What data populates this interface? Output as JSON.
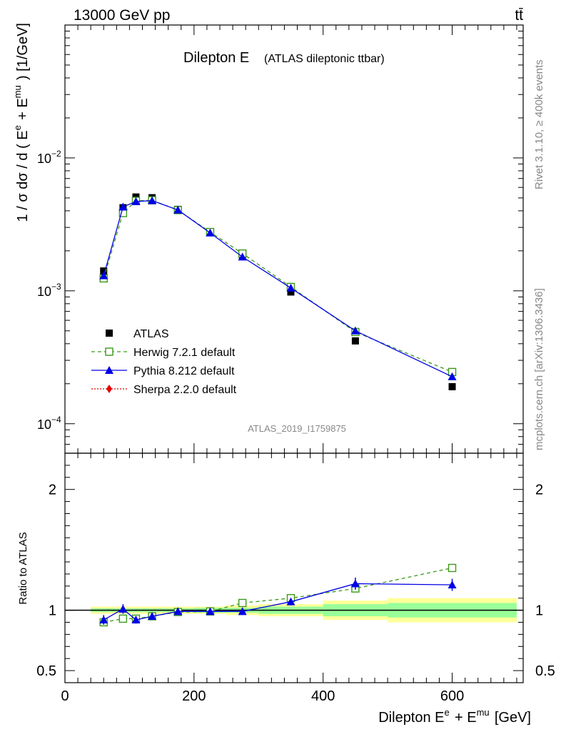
{
  "header": {
    "left": "13000 GeV pp",
    "right": "tt̄"
  },
  "title": {
    "main": "Dilepton E",
    "sub": "(ATLAS dileptonic ttbar)"
  },
  "side_labels": {
    "rivet": "Rivet 3.1.10, ≥ 400k events",
    "mcplots": "mcplots.cern.ch [arXiv:1306.3436]"
  },
  "watermark": "ATLAS_2019_I1759875",
  "legend": [
    {
      "label": "ATLAS",
      "color": "#000000",
      "marker": "square-filled"
    },
    {
      "label": "Herwig 7.2.1 default",
      "color": "#3a9a1a",
      "marker": "square-open",
      "line": "dashed"
    },
    {
      "label": "Pythia 8.212 default",
      "color": "#0000e6",
      "marker": "triangle",
      "line": "solid"
    },
    {
      "label": "Sherpa 2.2.0 default",
      "color": "#e60000",
      "marker": "diamond",
      "line": "dotted"
    }
  ],
  "chart_data": [
    {
      "type": "line",
      "ylabel": "1 / σ dσ / d ( E^e + E^mu ) [1/GeV]",
      "yscale": "log",
      "ylim": [
        6e-05,
        0.1
      ],
      "xlim": [
        0,
        710
      ],
      "y_ticks": [
        "10^-4",
        "10^-3",
        "10^-2"
      ],
      "x": [
        60,
        90,
        110,
        135,
        175,
        225,
        275,
        350,
        450,
        600
      ],
      "series": [
        {
          "name": "ATLAS",
          "values": [
            0.00141,
            0.00422,
            0.00508,
            0.00502,
            0.0041,
            0.00275,
            0.00182,
            0.00098,
            0.00042,
            0.00019
          ],
          "band": [
            [
              40,
              80
            ],
            [
              80,
              100
            ],
            [
              100,
              120
            ],
            [
              120,
              150
            ],
            [
              150,
              200
            ],
            [
              200,
              250
            ],
            [
              250,
              300
            ],
            [
              300,
              400
            ],
            [
              400,
              500
            ],
            [
              500,
              700
            ]
          ]
        },
        {
          "name": "Herwig 7.2.1 default",
          "values": [
            0.00124,
            0.00385,
            0.00475,
            0.0048,
            0.00405,
            0.00277,
            0.00191,
            0.00107,
            0.00049,
            0.000245
          ]
        },
        {
          "name": "Pythia 8.212 default",
          "values": [
            0.0013,
            0.00428,
            0.0047,
            0.00477,
            0.00406,
            0.00273,
            0.0018,
            0.00105,
            0.0005,
            0.000226
          ]
        }
      ]
    },
    {
      "type": "line",
      "ylabel": "Ratio to ATLAS",
      "ylim": [
        0.4,
        2.3
      ],
      "y_ticks": [
        "0.5",
        "1",
        "2"
      ],
      "xlabel": "Dilepton E^e + E^mu [GeV]",
      "x_ticks": [
        "0",
        "200",
        "400",
        "600"
      ],
      "x": [
        60,
        90,
        110,
        135,
        175,
        225,
        275,
        350,
        450,
        600
      ],
      "bands": {
        "inner": [
          0.015,
          0.015,
          0.015,
          0.015,
          0.015,
          0.02,
          0.02,
          0.03,
          0.05,
          0.06
        ],
        "outer": [
          0.03,
          0.03,
          0.03,
          0.03,
          0.03,
          0.03,
          0.04,
          0.05,
          0.08,
          0.1
        ]
      },
      "series": [
        {
          "name": "Herwig 7.2.1 default",
          "values": [
            0.9,
            0.93,
            0.93,
            0.95,
            0.985,
            0.99,
            1.06,
            1.1,
            1.18,
            1.35
          ]
        },
        {
          "name": "Pythia 8.212 default",
          "values": [
            0.92,
            1.01,
            0.92,
            0.95,
            0.99,
            0.99,
            0.99,
            1.07,
            1.22,
            1.21
          ],
          "errors": [
            0.04,
            0.04,
            0.03,
            0.025,
            0.02,
            0.02,
            0.03,
            0.03,
            0.05,
            0.05
          ]
        }
      ]
    }
  ]
}
